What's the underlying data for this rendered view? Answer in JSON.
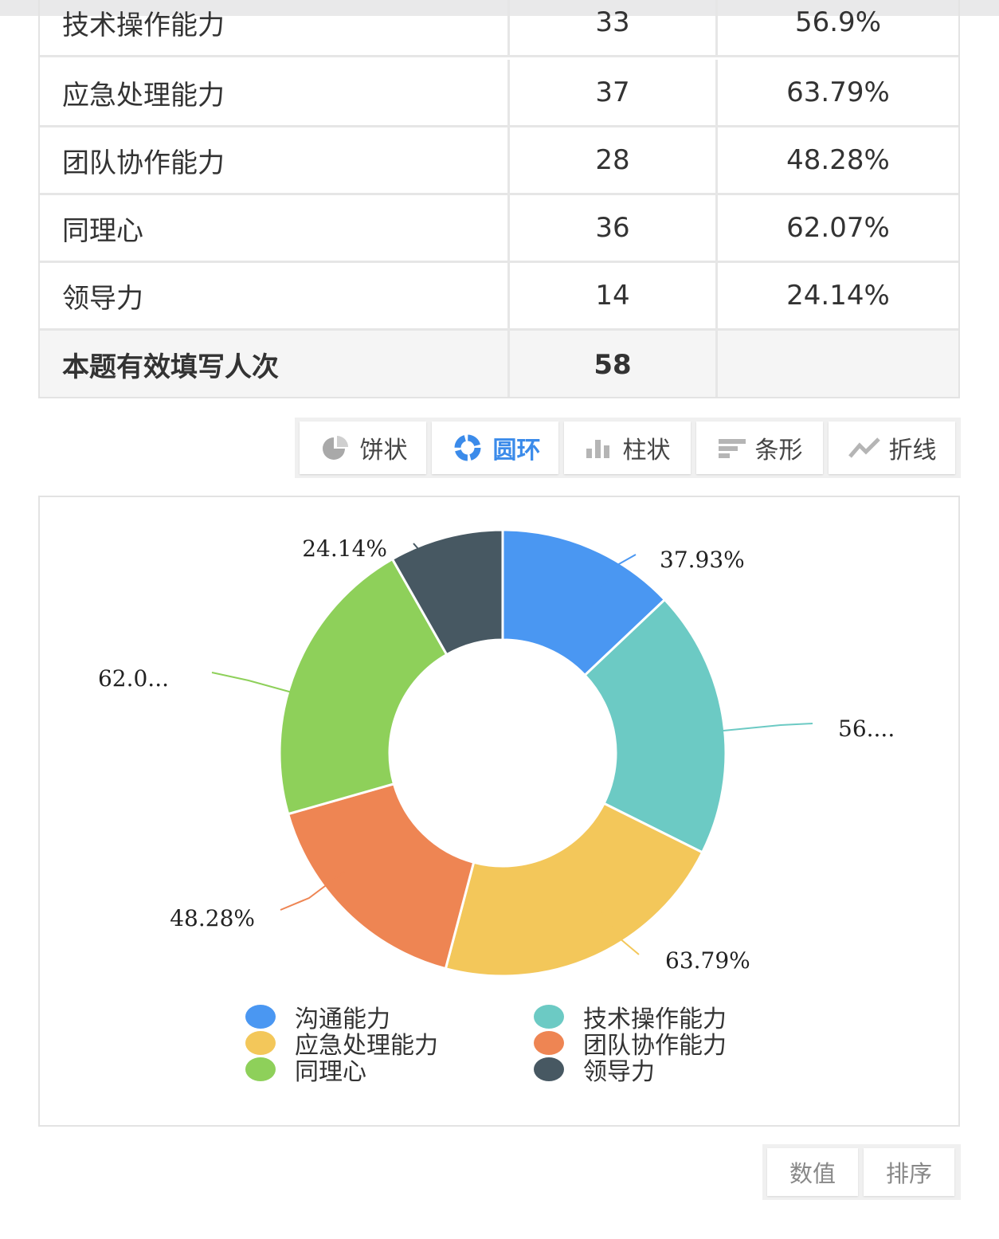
{
  "table": {
    "rows": [
      {
        "name": "技术操作能力",
        "count": "33",
        "percent": "56.9%"
      },
      {
        "name": "应急处理能力",
        "count": "37",
        "percent": "63.79%"
      },
      {
        "name": "团队协作能力",
        "count": "28",
        "percent": "48.28%"
      },
      {
        "name": "同理心",
        "count": "36",
        "percent": "62.07%"
      },
      {
        "name": "领导力",
        "count": "14",
        "percent": "24.14%"
      }
    ],
    "total": {
      "label": "本题有效填写人次",
      "count": "58",
      "percent": ""
    }
  },
  "toolbar": {
    "buttons": [
      {
        "label": "饼状",
        "icon": "pie-icon"
      },
      {
        "label": "圆环",
        "icon": "donut-icon",
        "active": true
      },
      {
        "label": "柱状",
        "icon": "bar-icon"
      },
      {
        "label": "条形",
        "icon": "horizontal-bar-icon"
      },
      {
        "label": "折线",
        "icon": "line-icon"
      }
    ]
  },
  "chart_data": {
    "type": "pie",
    "style": "donut",
    "series": [
      {
        "name": "沟通能力",
        "value": 22,
        "label": "37.93%",
        "color": "#4a97f2"
      },
      {
        "name": "技术操作能力",
        "value": 33,
        "label": "56....",
        "color": "#6ccac4"
      },
      {
        "name": "应急处理能力",
        "value": 37,
        "label": "63.79%",
        "color": "#f3c75a"
      },
      {
        "name": "团队协作能力",
        "value": 28,
        "label": "48.28%",
        "color": "#ee8553"
      },
      {
        "name": "同理心",
        "value": 36,
        "label": "62.0...",
        "color": "#8ed05a"
      },
      {
        "name": "领导力",
        "value": 14,
        "label": "24.14%",
        "color": "#475862"
      }
    ],
    "legend_placement": "bottom"
  },
  "bottom_tools": {
    "value_label": "数值",
    "sort_label": "排序"
  }
}
